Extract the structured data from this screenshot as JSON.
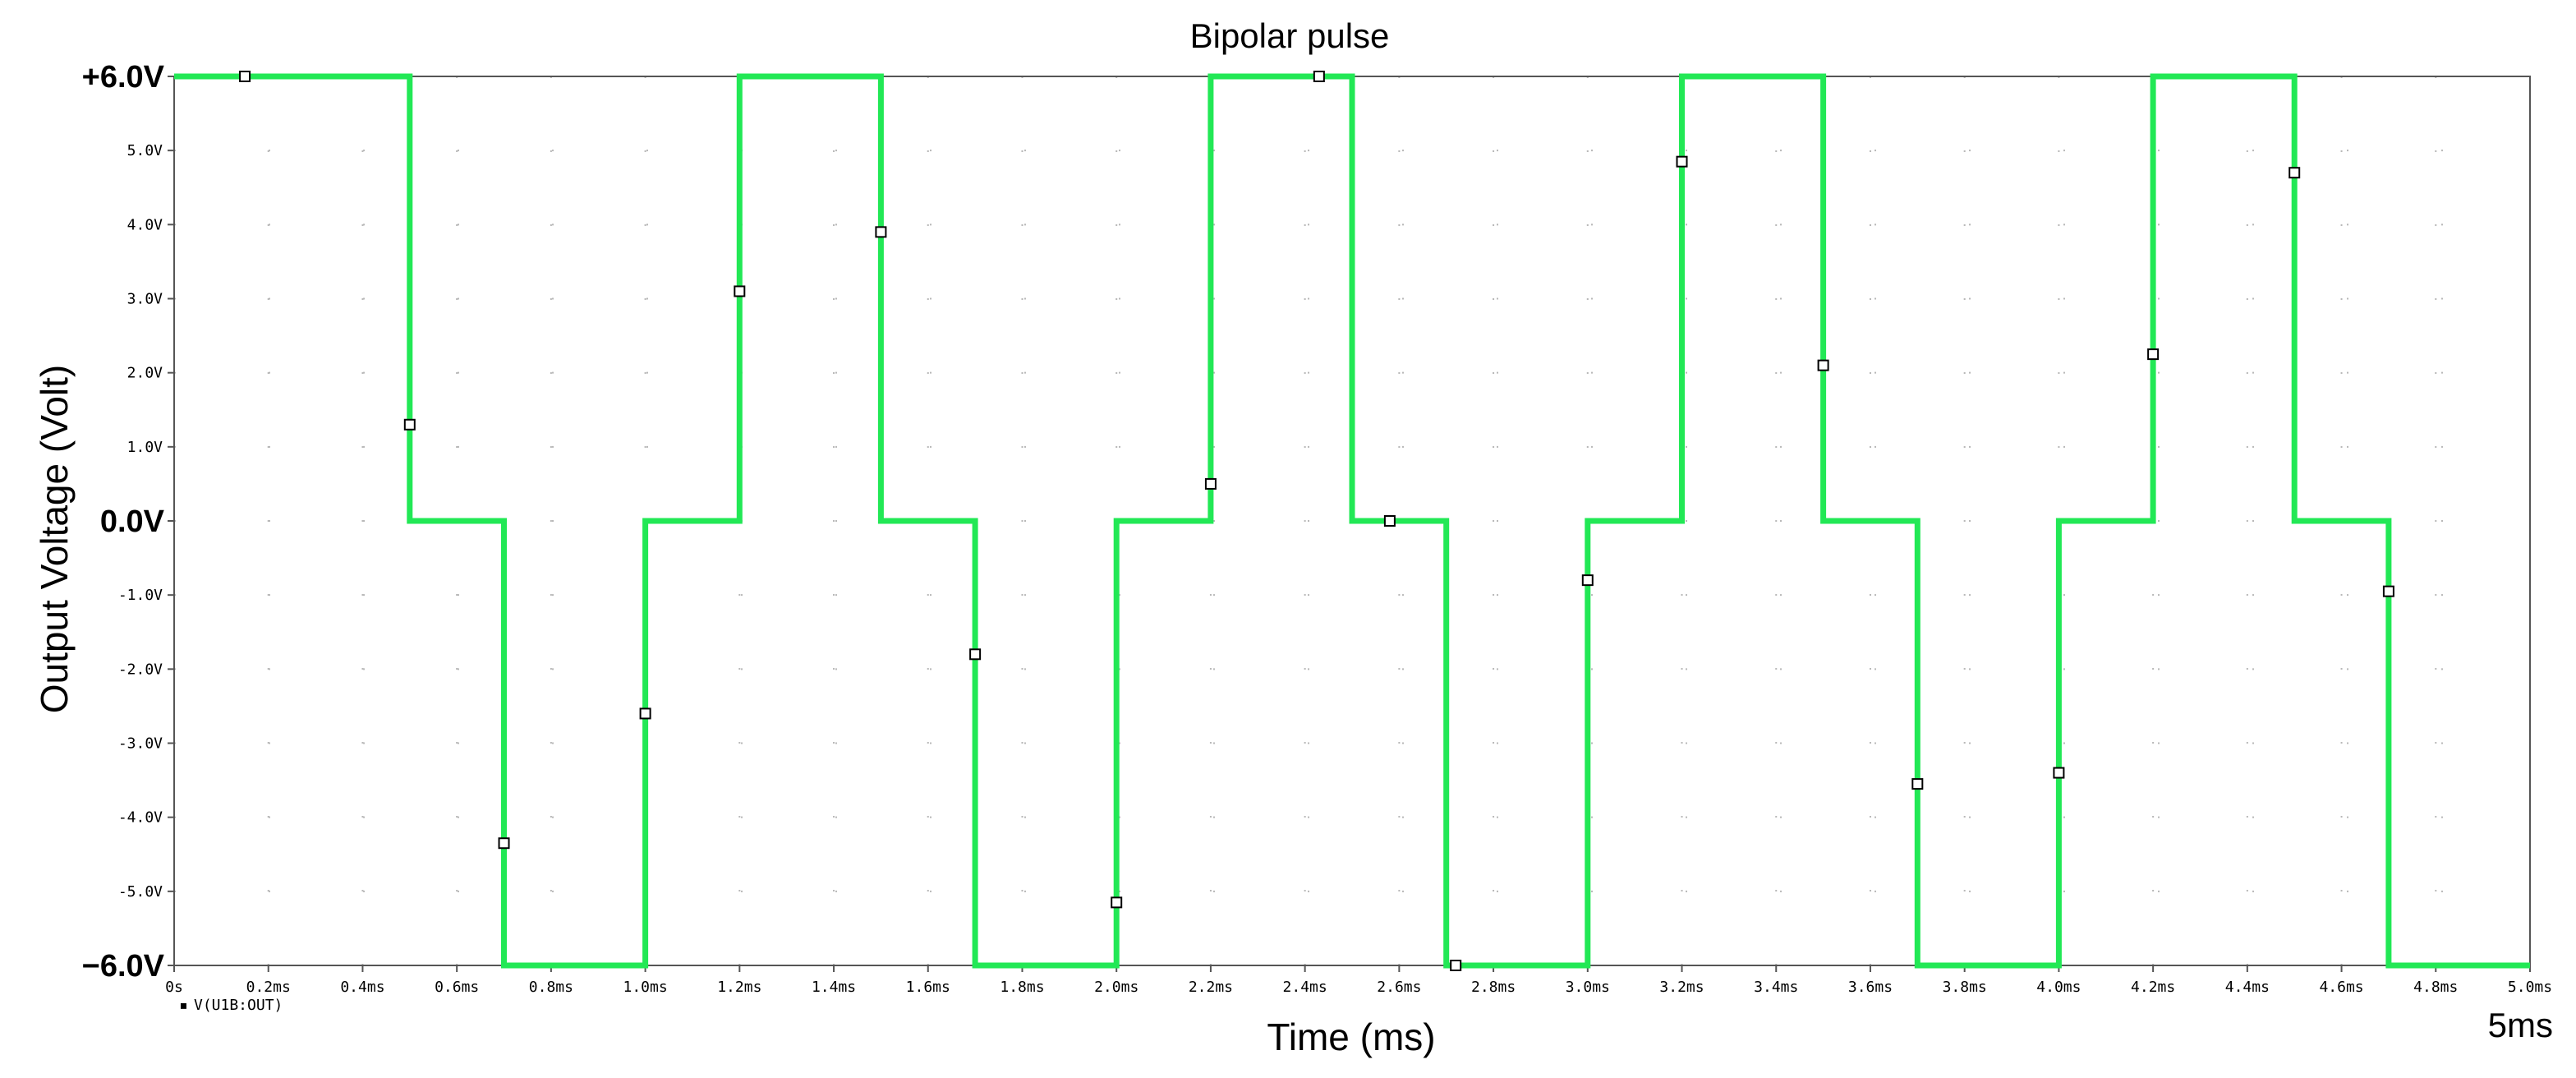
{
  "chart_data": {
    "type": "line",
    "title": "Bipolar pulse",
    "xlabel": "Time (ms)",
    "ylabel": "Output Voltage (Volt)",
    "xlim": [
      0,
      5.0
    ],
    "ylim": [
      -6,
      6
    ],
    "grid": true,
    "x_ticks": [
      {
        "value": 0,
        "label": "0s"
      },
      {
        "value": 0.2,
        "label": "0.2ms"
      },
      {
        "value": 0.4,
        "label": "0.4ms"
      },
      {
        "value": 0.6,
        "label": "0.6ms"
      },
      {
        "value": 0.8,
        "label": "0.8ms"
      },
      {
        "value": 1.0,
        "label": "1.0ms"
      },
      {
        "value": 1.2,
        "label": "1.2ms"
      },
      {
        "value": 1.4,
        "label": "1.4ms"
      },
      {
        "value": 1.6,
        "label": "1.6ms"
      },
      {
        "value": 1.8,
        "label": "1.8ms"
      },
      {
        "value": 2.0,
        "label": "2.0ms"
      },
      {
        "value": 2.2,
        "label": "2.2ms"
      },
      {
        "value": 2.4,
        "label": "2.4ms"
      },
      {
        "value": 2.6,
        "label": "2.6ms"
      },
      {
        "value": 2.8,
        "label": "2.8ms"
      },
      {
        "value": 3.0,
        "label": "3.0ms"
      },
      {
        "value": 3.2,
        "label": "3.2ms"
      },
      {
        "value": 3.4,
        "label": "3.4ms"
      },
      {
        "value": 3.6,
        "label": "3.6ms"
      },
      {
        "value": 3.8,
        "label": "3.8ms"
      },
      {
        "value": 4.0,
        "label": "4.0ms"
      },
      {
        "value": 4.2,
        "label": "4.2ms"
      },
      {
        "value": 4.4,
        "label": "4.4ms"
      },
      {
        "value": 4.6,
        "label": "4.6ms"
      },
      {
        "value": 4.8,
        "label": "4.8ms"
      },
      {
        "value": 5.0,
        "label": "5.0ms"
      }
    ],
    "y_ticks": [
      {
        "value": 6,
        "label": "+6.0V",
        "major": true
      },
      {
        "value": 5,
        "label": "5.0V",
        "major": false
      },
      {
        "value": 4,
        "label": "4.0V",
        "major": false
      },
      {
        "value": 3,
        "label": "3.0V",
        "major": false
      },
      {
        "value": 2,
        "label": "2.0V",
        "major": false
      },
      {
        "value": 1,
        "label": "1.0V",
        "major": false
      },
      {
        "value": 0,
        "label": "0.0V",
        "major": true
      },
      {
        "value": -1,
        "label": "-1.0V",
        "major": false
      },
      {
        "value": -2,
        "label": "-2.0V",
        "major": false
      },
      {
        "value": -3,
        "label": "-3.0V",
        "major": false
      },
      {
        "value": -4,
        "label": "-4.0V",
        "major": false
      },
      {
        "value": -5,
        "label": "-5.0V",
        "major": false
      },
      {
        "value": -6,
        "label": "−6.0V",
        "major": true
      }
    ],
    "series": [
      {
        "name": "V(U1B:OUT)",
        "color": "#22e855",
        "x": [
          0,
          0.5,
          0.5,
          0.7,
          0.7,
          1.0,
          1.0,
          1.2,
          1.2,
          1.5,
          1.5,
          1.7,
          1.7,
          2.0,
          2.0,
          2.2,
          2.2,
          2.5,
          2.5,
          2.7,
          2.7,
          3.0,
          3.0,
          3.2,
          3.2,
          3.5,
          3.5,
          3.7,
          3.7,
          4.0,
          4.0,
          4.2,
          4.2,
          4.5,
          4.5,
          4.7,
          4.7,
          5.0
        ],
        "y": [
          6,
          6,
          0,
          0,
          -6,
          -6,
          0,
          0,
          6,
          6,
          0,
          0,
          -6,
          -6,
          0,
          0,
          6,
          6,
          0,
          0,
          -6,
          -6,
          0,
          0,
          6,
          6,
          0,
          0,
          -6,
          -6,
          0,
          0,
          6,
          6,
          0,
          0,
          -6,
          -6
        ],
        "markers": {
          "x": [
            0.15,
            0.5,
            0.7,
            1.0,
            1.2,
            1.5,
            1.7,
            2.0,
            2.2,
            2.43,
            2.58,
            2.72,
            3.0,
            3.2,
            3.5,
            3.7,
            4.0,
            4.2,
            4.5,
            4.7
          ],
          "y": [
            6.0,
            1.3,
            -4.35,
            -2.6,
            3.1,
            3.9,
            -1.8,
            -5.15,
            0.5,
            6.0,
            0.0,
            -6.0,
            -0.8,
            4.85,
            2.1,
            -3.55,
            -3.4,
            2.25,
            4.7,
            -0.95
          ]
        }
      }
    ],
    "legend": {
      "placement": "bottom-left",
      "marker": "▪"
    },
    "corner_label": "5ms"
  }
}
